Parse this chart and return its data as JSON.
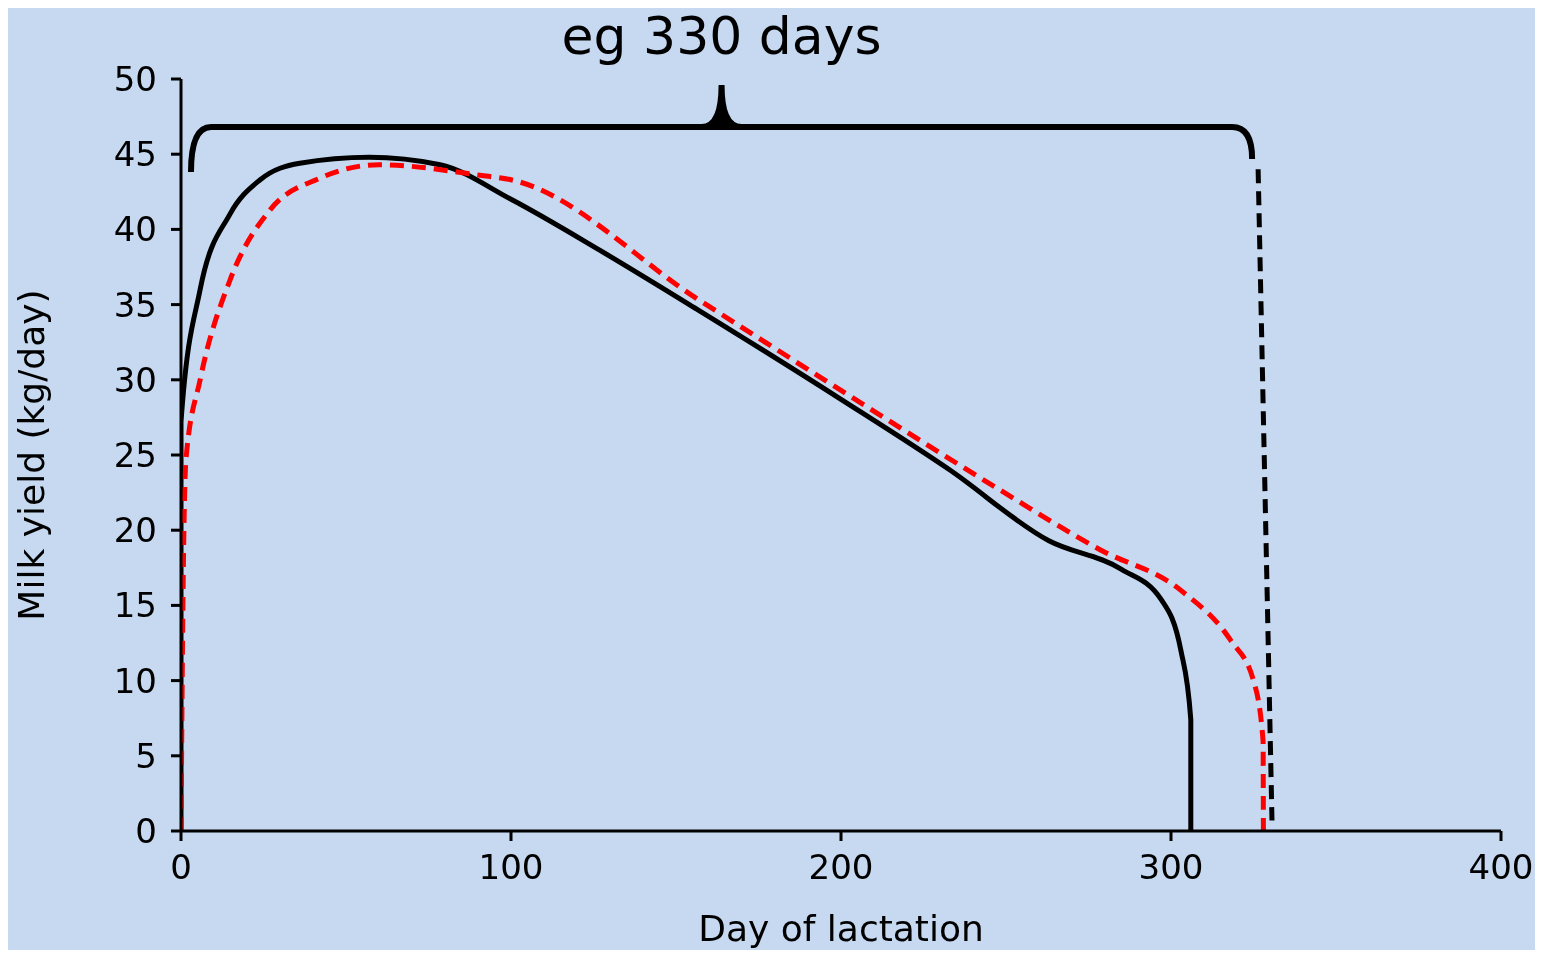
{
  "chart_data": {
    "type": "line",
    "xlabel": "Day of lactation",
    "ylabel": "Milk yield (kg/day)",
    "annotations": [
      "eg 330 days"
    ],
    "xlim": [
      0,
      400
    ],
    "xticks": [
      0,
      100,
      200,
      300,
      400
    ],
    "ylim": [
      0,
      50
    ],
    "yticks": [
      0,
      5,
      10,
      15,
      20,
      25,
      30,
      35,
      40,
      45,
      50
    ],
    "marker": "none",
    "series": [
      {
        "color": "#000000",
        "line_style": "solid",
        "x": [
          0,
          0,
          5.8,
          14.8,
          24,
          36,
          57,
          78.5,
          100,
          127,
          157,
          200,
          233,
          263,
          285,
          297,
          303,
          306,
          306
        ],
        "values": [
          0,
          27.2,
          36,
          41,
          43.3,
          44.4,
          44.8,
          44.3,
          42,
          38.6,
          34.6,
          28.7,
          24,
          19.3,
          17.4,
          15.4,
          12,
          7.4,
          0
        ]
      },
      {
        "color": "#ff0000",
        "line_style": "dashed",
        "x": [
          0,
          0.6,
          1.5,
          5.8,
          14.8,
          27,
          42,
          60,
          90.6,
          100,
          157,
          200,
          248,
          278.5,
          303,
          318,
          325,
          327.9,
          328
        ],
        "values": [
          0,
          15.4,
          24.7,
          30,
          36.6,
          41.3,
          43.4,
          44.3,
          43.6,
          43.3,
          35.3,
          29.3,
          22.7,
          18.7,
          16,
          12.7,
          10,
          6,
          0
        ]
      },
      {
        "color": "#000000",
        "line_style": "dashed",
        "x": [
          326.4,
          330.6
        ],
        "values": [
          44,
          0.7
        ]
      }
    ]
  }
}
